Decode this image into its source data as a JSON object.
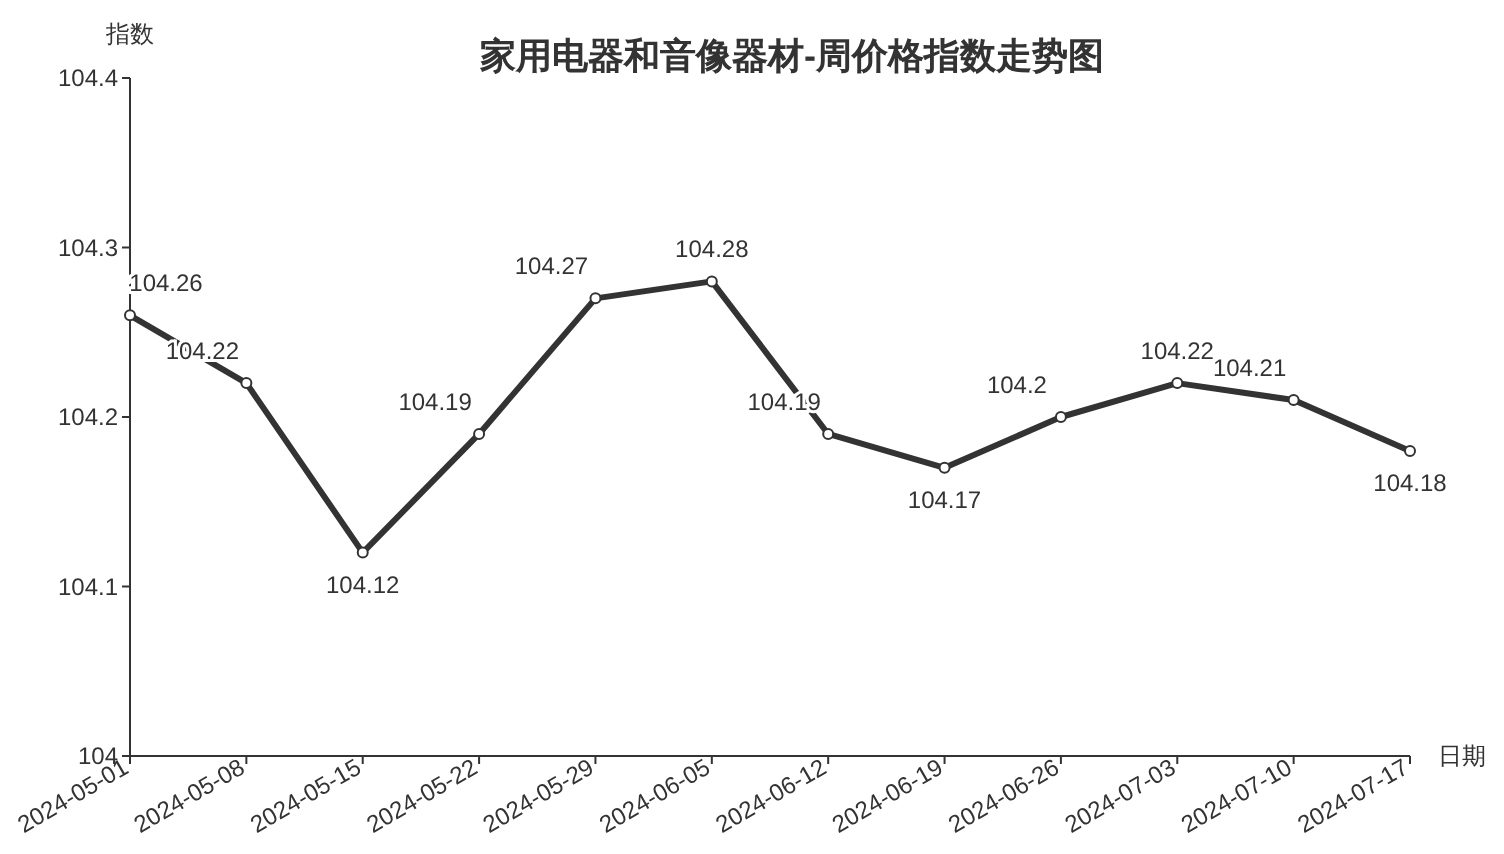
{
  "chart_data": {
    "type": "line",
    "title": "家用电器和音像器材-周价格指数走势图",
    "xlabel": "日期",
    "ylabel": "指数",
    "categories": [
      "2024-05-01",
      "2024-05-08",
      "2024-05-15",
      "2024-05-22",
      "2024-05-29",
      "2024-06-05",
      "2024-06-12",
      "2024-06-19",
      "2024-06-26",
      "2024-07-03",
      "2024-07-10",
      "2024-07-17"
    ],
    "series": [
      {
        "color": "#333333",
        "values": [
          104.26,
          104.22,
          104.12,
          104.19,
          104.27,
          104.28,
          104.19,
          104.17,
          104.2,
          104.22,
          104.21,
          104.18
        ]
      }
    ],
    "ylim": [
      104,
      104.4
    ],
    "yticks": [
      104,
      104.1,
      104.2,
      104.3,
      104.4
    ],
    "data_labels": true,
    "marker": "circle",
    "line_style": "solid"
  }
}
